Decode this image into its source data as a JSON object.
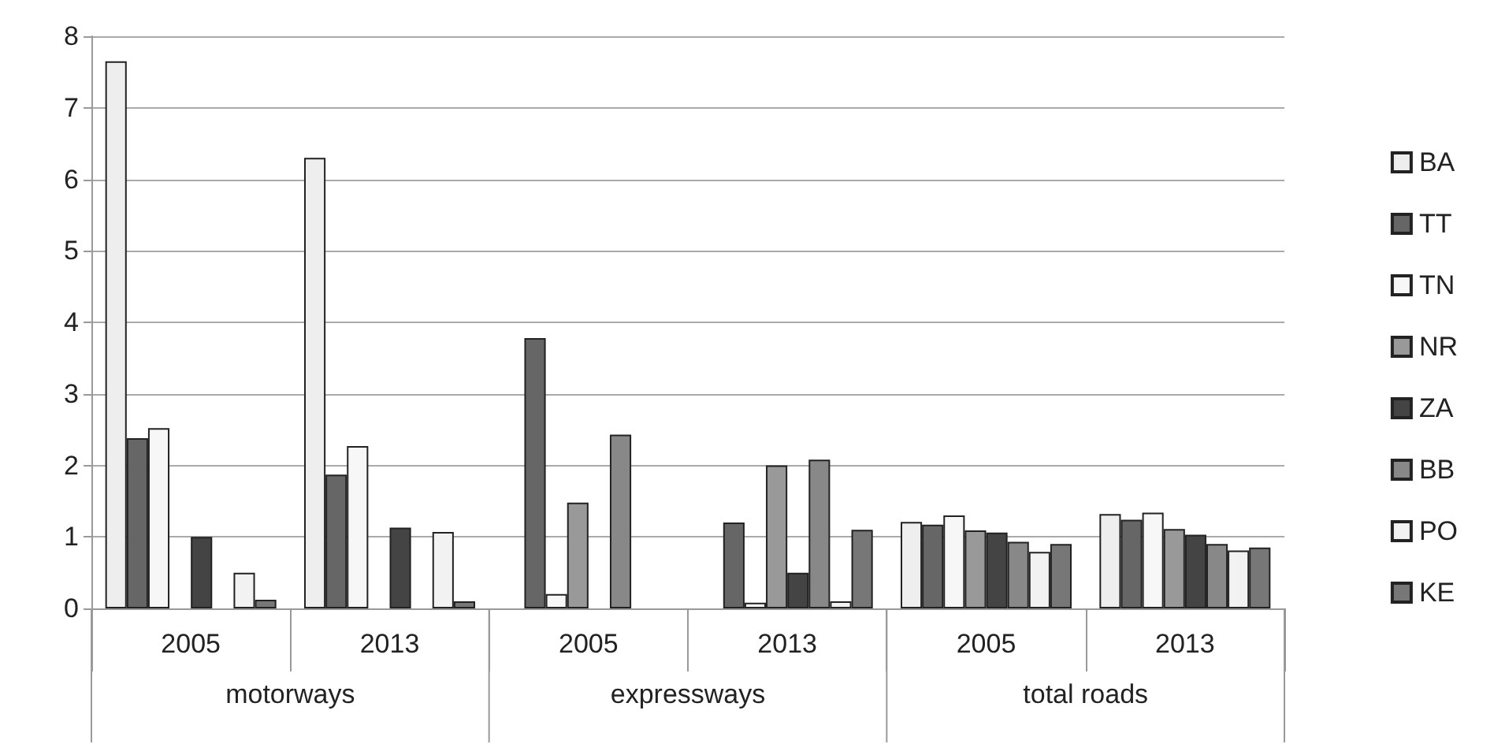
{
  "chart_data": {
    "type": "bar",
    "categories": [
      "2005",
      "2013",
      "2005",
      "2013",
      "2005",
      "2013"
    ],
    "annotations": [
      "motorways",
      "expressways",
      "total roads"
    ],
    "ylim": [
      0,
      8
    ],
    "yticks": [
      0,
      1,
      2,
      3,
      4,
      5,
      6,
      7,
      8
    ],
    "grid": "y",
    "legend": "right",
    "series": [
      {
        "name": "BA",
        "color": "#eeeeee",
        "values": [
          7.65,
          6.3,
          null,
          null,
          1.21,
          1.32
        ]
      },
      {
        "name": "TT",
        "color": "#666666",
        "values": [
          2.38,
          1.87,
          3.78,
          1.2,
          1.17,
          1.24
        ]
      },
      {
        "name": "TN",
        "color": "#f7f7f7",
        "values": [
          2.52,
          2.27,
          0.2,
          0.08,
          1.3,
          1.34
        ]
      },
      {
        "name": "NR",
        "color": "#999999",
        "values": [
          null,
          null,
          1.48,
          2.0,
          1.09,
          1.11
        ]
      },
      {
        "name": "ZA",
        "color": "#444444",
        "values": [
          1.0,
          1.13,
          null,
          0.5,
          1.06,
          1.03
        ]
      },
      {
        "name": "BB",
        "color": "#888888",
        "values": [
          null,
          null,
          2.43,
          2.08,
          0.93,
          0.9
        ]
      },
      {
        "name": "PO",
        "color": "#f2f2f2",
        "values": [
          0.5,
          1.07,
          null,
          0.1,
          0.79,
          0.81
        ]
      },
      {
        "name": "KE",
        "color": "#777777",
        "values": [
          0.12,
          0.1,
          null,
          1.1,
          0.9,
          0.85
        ]
      }
    ]
  }
}
